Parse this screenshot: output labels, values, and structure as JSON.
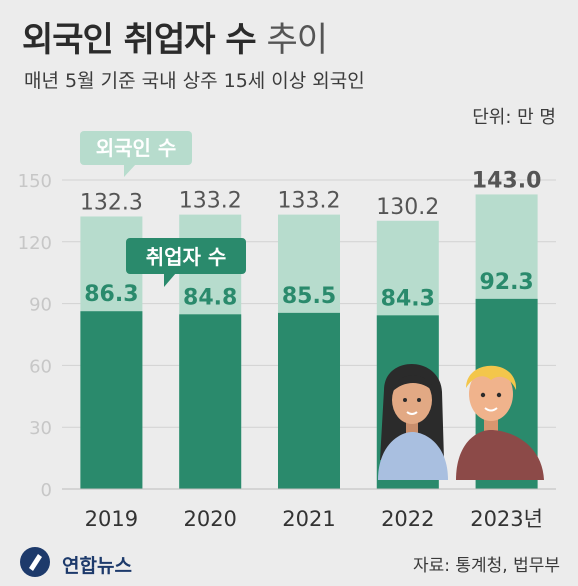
{
  "title": {
    "bold": "외국인 취업자 수",
    "light": "추이"
  },
  "subtitle": "매년 5월 기준 국내 상주 15세 이상 외국인",
  "unit": "단위: 만 명",
  "source": "자료: 통계청, 법무부",
  "logo": {
    "text": "연합뉴스"
  },
  "chart_data": {
    "type": "bar",
    "categories": [
      "2019",
      "2020",
      "2021",
      "2022",
      "2023년"
    ],
    "series": [
      {
        "name": "외국인 수",
        "values": [
          132.3,
          133.2,
          133.2,
          130.2,
          143.0
        ],
        "labels": [
          "132.3",
          "133.2",
          "133.2",
          "130.2",
          "143.0"
        ],
        "color": "#b7dccd",
        "label_color": "#555555"
      },
      {
        "name": "취업자 수",
        "values": [
          86.3,
          84.8,
          85.5,
          84.3,
          92.3
        ],
        "labels": [
          "86.3",
          "84.8",
          "85.5",
          "84.3",
          "92.3"
        ],
        "color": "#2a8a6c",
        "label_color": "#2a8a6c"
      }
    ],
    "ylim": [
      0,
      150
    ],
    "yticks": [
      "0",
      "30",
      "60",
      "90",
      "120",
      "150"
    ],
    "grid": true,
    "legend": "callouts"
  },
  "colors": {
    "background": "#ececec",
    "light_bar": "#b7dccd",
    "dark_bar": "#2a8a6c",
    "gridline": "#d2d2d2"
  }
}
